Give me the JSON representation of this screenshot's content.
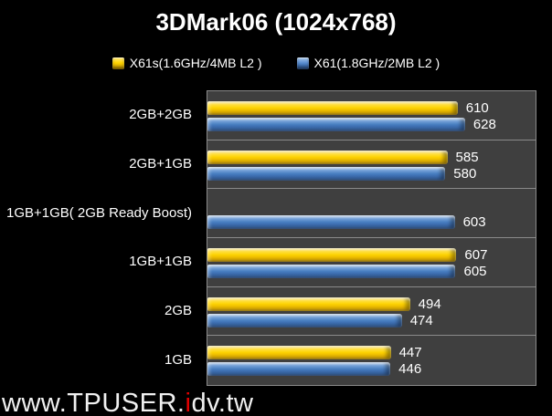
{
  "title": "3DMark06 (1024x768)",
  "legend": [
    {
      "label": "X61s(1.6GHz/4MB L2 )",
      "color": "#FFD400"
    },
    {
      "label": "X61(1.8GHz/2MB L2 )",
      "color": "#4A7EC0"
    }
  ],
  "chart_data": {
    "type": "bar",
    "orientation": "horizontal",
    "title": "3DMark06 (1024x768)",
    "xlabel": "",
    "ylabel": "",
    "xlim": [
      0,
      800
    ],
    "grid": false,
    "axis_ticks_visible": false,
    "legend_position": "top",
    "data_labels": true,
    "plot_background": "#3f3f3f",
    "separator_color": "#8a8a8a",
    "categories": [
      "2GB+2GB",
      "2GB+1GB",
      "1GB+1GB( 2GB Ready Boost)",
      "1GB+1GB",
      "2GB",
      "1GB"
    ],
    "series": [
      {
        "name": "X61s(1.6GHz/4MB L2 )",
        "color": "#FFD400",
        "values": [
          610,
          585,
          null,
          607,
          494,
          447
        ]
      },
      {
        "name": "X61(1.8GHz/2MB L2 )",
        "color": "#4A7EC0",
        "values": [
          628,
          580,
          603,
          605,
          474,
          446
        ]
      }
    ]
  },
  "watermark": {
    "prefix": "www.TPUSER.",
    "highlight": "i",
    "suffix": "dv.tw",
    "highlight_color": "#e10000"
  }
}
